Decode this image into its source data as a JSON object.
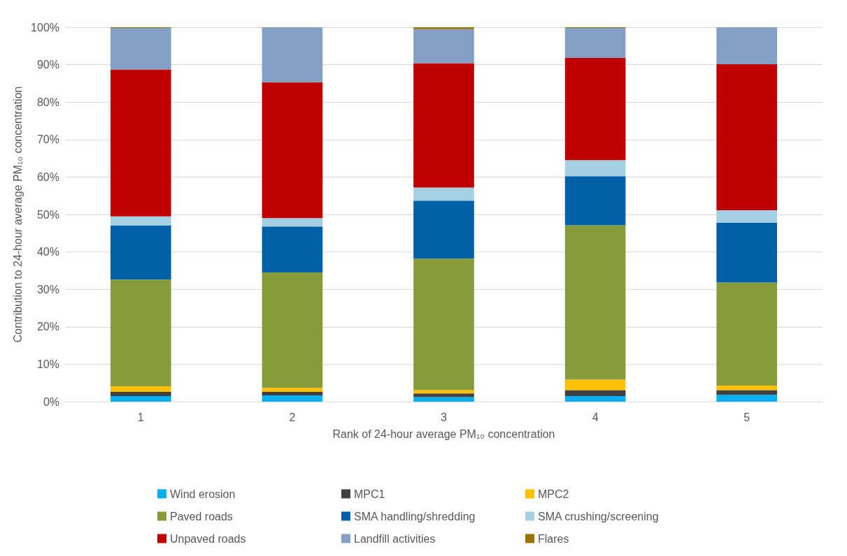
{
  "chart_data": {
    "type": "bar",
    "stacked": true,
    "xlabel": "Rank of 24-hour average PM₁₀ concentration",
    "ylabel": "Contribution to 24-hour average PM₁₀ concentration",
    "categories": [
      "1",
      "2",
      "3",
      "4",
      "5"
    ],
    "ylim": [
      0,
      100
    ],
    "yticks": [
      {
        "value": 0,
        "label": "0%"
      },
      {
        "value": 10,
        "label": "10%"
      },
      {
        "value": 20,
        "label": "20%"
      },
      {
        "value": 30,
        "label": "30%"
      },
      {
        "value": 40,
        "label": "40%"
      },
      {
        "value": 50,
        "label": "50%"
      },
      {
        "value": 60,
        "label": "60%"
      },
      {
        "value": 70,
        "label": "70%"
      },
      {
        "value": 80,
        "label": "80%"
      },
      {
        "value": 90,
        "label": "90%"
      },
      {
        "value": 100,
        "label": "100%"
      }
    ],
    "grid": "y",
    "legend": "bottom",
    "series": [
      {
        "name": "Wind erosion",
        "color": "#00b0f0",
        "values": [
          1.5,
          1.7,
          1.2,
          1.5,
          1.8
        ]
      },
      {
        "name": "MPC1",
        "color": "#404040",
        "values": [
          1.1,
          0.9,
          1.0,
          1.6,
          1.3
        ]
      },
      {
        "name": "MPC2",
        "color": "#ffc000",
        "values": [
          1.5,
          1.1,
          0.9,
          2.8,
          1.2
        ]
      },
      {
        "name": "Paved roads",
        "color": "#869b3a",
        "values": [
          28.5,
          30.8,
          35.1,
          41.2,
          27.5
        ]
      },
      {
        "name": "SMA handling/shredding",
        "color": "#0060a8",
        "values": [
          14.4,
          12.3,
          15.5,
          13.1,
          16.0
        ]
      },
      {
        "name": "SMA crushing/screening",
        "color": "#a4d0e4",
        "values": [
          2.5,
          2.2,
          3.5,
          4.3,
          3.3
        ]
      },
      {
        "name": "Unpaved roads",
        "color": "#c00000",
        "values": [
          39.2,
          36.3,
          33.2,
          27.3,
          39.0
        ]
      },
      {
        "name": "Landfill activities",
        "color": "#849fc5",
        "values": [
          11.1,
          14.7,
          9.1,
          8.0,
          9.9
        ]
      },
      {
        "name": "Flares",
        "color": "#9c7300",
        "values": [
          0.2,
          0,
          0.5,
          0.2,
          0
        ]
      }
    ]
  }
}
